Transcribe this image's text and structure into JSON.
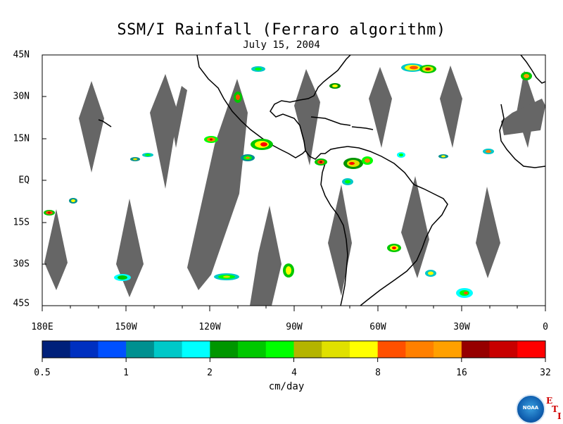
{
  "title": "SSM/I Rainfall (Ferraro algorithm)",
  "subtitle": "July 15, 2004",
  "map": {
    "lat_ticks": [
      "45N",
      "30N",
      "15N",
      "EQ",
      "15S",
      "30S",
      "45S"
    ],
    "lon_ticks": [
      "180E",
      "150W",
      "120W",
      "90W",
      "60W",
      "30W",
      "0"
    ],
    "lon_range": [
      -180,
      0
    ],
    "lat_range": [
      -45,
      45
    ],
    "swath_gap_color": "#666666",
    "coastline_color": "#000000"
  },
  "colorbar": {
    "colors": [
      "#00207a",
      "#0030c0",
      "#0050ff",
      "#009090",
      "#00c8c8",
      "#00ffff",
      "#009600",
      "#00c800",
      "#00ff00",
      "#b4b400",
      "#e0e000",
      "#ffff00",
      "#ff5000",
      "#ff8000",
      "#ffa000",
      "#960000",
      "#c80000",
      "#ff0000"
    ],
    "tick_labels": [
      "0.5",
      "1",
      "2",
      "4",
      "8",
      "16",
      "32"
    ],
    "unit": "cm/day"
  },
  "logo": {
    "text": "NOAA",
    "letters": [
      "E",
      "T",
      "I"
    ]
  }
}
